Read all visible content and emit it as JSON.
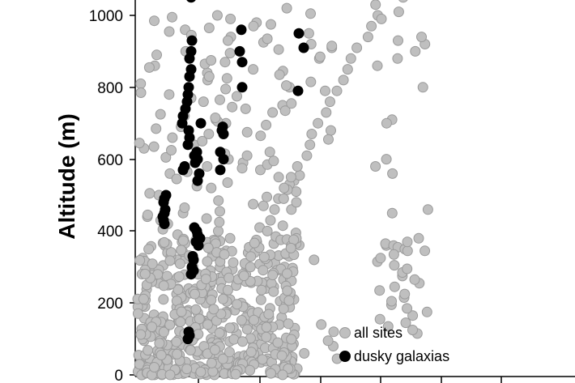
{
  "chart_data": {
    "type": "scatter",
    "ylabel": "Altitude (m)",
    "xlabel": "",
    "ylim": [
      0,
      1000
    ],
    "y_ticks": [
      "0",
      "200",
      "400",
      "600",
      "800",
      "1000"
    ],
    "grid": false,
    "legend_position": "bottom-right",
    "series": [
      {
        "name": "all sites",
        "color": "#bfbfbf",
        "stroke": "#9a9a9a",
        "y": [
          20,
          40,
          60,
          80,
          100,
          120,
          140,
          160,
          180,
          200,
          220,
          240,
          260,
          280,
          300,
          320,
          340,
          360,
          380,
          400,
          420,
          440,
          460,
          480,
          500,
          520,
          540,
          560,
          580,
          600,
          620,
          640,
          660,
          680,
          700,
          720,
          740,
          760,
          780,
          800,
          820,
          840,
          860,
          880,
          900,
          920,
          940,
          960,
          980,
          1000,
          1020,
          30,
          50,
          70,
          90,
          110,
          130,
          150,
          170,
          190,
          210,
          230,
          250,
          270,
          290,
          310,
          330,
          350,
          370,
          390,
          410,
          430,
          450,
          470,
          490,
          510,
          530,
          550,
          570,
          590,
          610,
          630,
          650,
          670,
          690,
          710,
          730,
          750,
          770,
          790,
          810,
          830,
          850,
          870,
          890,
          910,
          930,
          950,
          970,
          990,
          25,
          45,
          65,
          85,
          105,
          125,
          145,
          165,
          185,
          205,
          225,
          245,
          265,
          285,
          305,
          325,
          345,
          365,
          385,
          405,
          425,
          445,
          465,
          485,
          505,
          525,
          545,
          565,
          585,
          605,
          625,
          645,
          665,
          685,
          705,
          725,
          745,
          765,
          785,
          805,
          825,
          845,
          865,
          885,
          905,
          925,
          945,
          965,
          985,
          1005,
          15,
          35,
          55,
          75,
          95,
          115,
          135,
          155,
          175,
          195,
          215,
          235,
          255,
          275,
          295,
          315,
          335,
          355,
          375,
          395,
          415,
          435,
          455,
          475,
          495,
          515,
          535,
          555,
          575,
          595,
          615,
          635,
          655,
          675,
          695,
          715,
          735,
          755,
          775,
          795,
          815,
          835,
          855,
          875,
          895,
          915,
          935,
          955,
          975,
          995,
          10,
          40,
          70,
          100,
          130,
          160,
          190,
          220,
          250,
          280,
          310,
          340,
          370,
          400,
          430,
          460,
          490,
          520,
          550,
          580,
          610,
          640,
          670,
          700,
          730,
          760,
          790,
          820,
          850,
          880,
          910,
          940,
          970,
          1000,
          360,
          365,
          360,
          355,
          350,
          345,
          340,
          330,
          320,
          310,
          300,
          280,
          260,
          240,
          220,
          200,
          180,
          160,
          140,
          120,
          100,
          80,
          60,
          40,
          20,
          5,
          15,
          25,
          35,
          45,
          55,
          65,
          75,
          85,
          95,
          105,
          115,
          125,
          135,
          145,
          155,
          165,
          175,
          185,
          195,
          205,
          215,
          225,
          235,
          245,
          255,
          265,
          275,
          285,
          295,
          305,
          315,
          325,
          335,
          345,
          900,
          920,
          930,
          940,
          880,
          860,
          800,
          710,
          700,
          600,
          580,
          560,
          450,
          460,
          380,
          370,
          1050,
          1030,
          1010,
          990
        ]
      },
      {
        "name": "dusky galaxias",
        "color": "#000000",
        "stroke": "#000000",
        "y": [
          1050,
          930,
          900,
          880,
          850,
          830,
          800,
          780,
          760,
          740,
          720,
          700,
          680,
          660,
          640,
          620,
          600,
          590,
          580,
          570,
          560,
          540,
          500,
          490,
          480,
          460,
          450,
          440,
          430,
          420,
          410,
          400,
          390,
          380,
          370,
          360,
          330,
          320,
          300,
          290,
          280,
          120,
          110,
          100,
          960,
          950,
          910,
          900,
          870,
          800,
          790,
          700,
          690,
          680,
          670,
          620,
          600,
          570,
          620,
          610
        ]
      }
    ]
  },
  "legend": {
    "items": [
      {
        "label": "all sites",
        "color": "#bfbfbf"
      },
      {
        "label": "dusky galaxias",
        "color": "#000000"
      }
    ]
  }
}
